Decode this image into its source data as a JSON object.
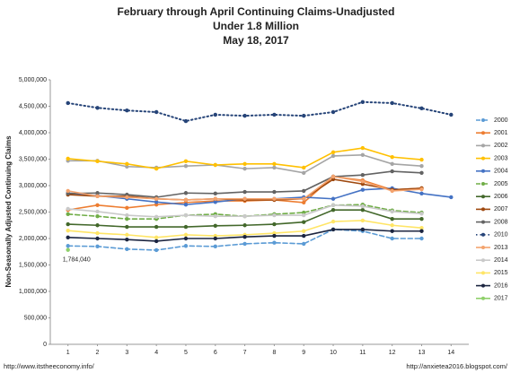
{
  "chart_data": {
    "type": "line",
    "title": "February through April Continuing Claims-Unadjusted",
    "subtitle": [
      "Under 1.8 Million",
      "May 18, 2017"
    ],
    "ylabel": "Non-Seasonally Adjusted Continuing Claims",
    "notes": [
      "http://www.itstheeconomy.info/",
      "http://anxietea2016.blogspot.com/"
    ],
    "x": [
      1,
      2,
      3,
      4,
      5,
      6,
      7,
      8,
      9,
      10,
      11,
      12,
      13,
      14
    ],
    "xlim": [
      0.4,
      14.6
    ],
    "xticks": [
      1,
      2,
      3,
      4,
      5,
      6,
      7,
      8,
      9,
      10,
      11,
      12,
      13,
      14
    ],
    "ylim": [
      0,
      5000000
    ],
    "yticks": [
      0,
      {
        "value": 500000,
        "label": "500,000"
      },
      {
        "value": 1000000,
        "label": "1,000,000"
      },
      {
        "value": 1500000,
        "label": "1,500,000"
      },
      {
        "value": 2000000,
        "label": "2,000,000"
      },
      {
        "value": 2500000,
        "label": "2,500,000"
      },
      {
        "value": 3000000,
        "label": "3,000,000"
      },
      {
        "value": 3500000,
        "label": "3,500,000"
      },
      {
        "value": 4000000,
        "label": "4,000,000"
      },
      {
        "value": 4500000,
        "label": "4,500,000"
      },
      {
        "value": 5000000,
        "label": "5,000,000"
      }
    ],
    "legend": "right",
    "series": [
      {
        "name": "2000",
        "color": "#5b9bd5",
        "style": "dashed",
        "values": [
          1860000,
          1850000,
          1800000,
          1780000,
          1860000,
          1850000,
          1900000,
          1920000,
          1900000,
          2170000,
          2140000,
          2000000,
          2000000,
          null
        ]
      },
      {
        "name": "2001",
        "color": "#ed7d31",
        "style": "solid",
        "values": [
          2540000,
          2630000,
          2580000,
          2640000,
          2680000,
          2710000,
          2710000,
          2730000,
          2680000,
          3170000,
          3100000,
          2920000,
          2950000,
          null
        ]
      },
      {
        "name": "2002",
        "color": "#a5a5a5",
        "style": "solid",
        "values": [
          3470000,
          3470000,
          3360000,
          3340000,
          3370000,
          3390000,
          3320000,
          3340000,
          3240000,
          3560000,
          3580000,
          3410000,
          3370000,
          null
        ]
      },
      {
        "name": "2003",
        "color": "#ffc000",
        "style": "solid",
        "values": [
          3510000,
          3460000,
          3410000,
          3320000,
          3460000,
          3390000,
          3410000,
          3410000,
          3340000,
          3630000,
          3710000,
          3540000,
          3490000,
          null
        ]
      },
      {
        "name": "2004",
        "color": "#4472c4",
        "style": "solid",
        "values": [
          2860000,
          2810000,
          2750000,
          2690000,
          2640000,
          2690000,
          2750000,
          2750000,
          2780000,
          2750000,
          2920000,
          2950000,
          2850000,
          2780000
        ]
      },
      {
        "name": "2005",
        "color": "#70ad47",
        "style": "dashed",
        "values": [
          2460000,
          2420000,
          2370000,
          2370000,
          2440000,
          2460000,
          2420000,
          2460000,
          2490000,
          2630000,
          2640000,
          2530000,
          2490000,
          null
        ]
      },
      {
        "name": "2006",
        "color": "#43682b",
        "style": "solid",
        "values": [
          2270000,
          2250000,
          2220000,
          2220000,
          2220000,
          2240000,
          2250000,
          2270000,
          2310000,
          2540000,
          2540000,
          2370000,
          2370000,
          null
        ]
      },
      {
        "name": "2007",
        "color": "#9e480e",
        "style": "solid",
        "values": [
          2830000,
          2800000,
          2800000,
          2750000,
          2730000,
          2750000,
          2730000,
          2730000,
          2750000,
          3120000,
          3030000,
          2920000,
          2950000,
          null
        ]
      },
      {
        "name": "2008",
        "color": "#636363",
        "style": "solid",
        "values": [
          2850000,
          2860000,
          2830000,
          2780000,
          2860000,
          2850000,
          2880000,
          2880000,
          2900000,
          3170000,
          3200000,
          3270000,
          3240000,
          null
        ]
      },
      {
        "name": "2010",
        "color": "#264478",
        "style": "dotted",
        "values": [
          4560000,
          4470000,
          4420000,
          4390000,
          4220000,
          4340000,
          4320000,
          4340000,
          4320000,
          4390000,
          4580000,
          4560000,
          4460000,
          4340000
        ]
      },
      {
        "name": "2013",
        "color": "#f4a36e",
        "style": "solid",
        "values": [
          2900000,
          2800000,
          2780000,
          2750000,
          2730000,
          2750000,
          2750000,
          2750000,
          2750000,
          3170000,
          3080000,
          2900000,
          2930000,
          null
        ]
      },
      {
        "name": "2014",
        "color": "#c9c9c9",
        "style": "solid",
        "values": [
          2560000,
          2510000,
          2440000,
          2410000,
          2440000,
          2420000,
          2420000,
          2440000,
          2440000,
          2630000,
          2610000,
          2510000,
          2470000,
          null
        ]
      },
      {
        "name": "2015",
        "color": "#ffe566",
        "style": "solid",
        "values": [
          2150000,
          2100000,
          2070000,
          2020000,
          2070000,
          2050000,
          2070000,
          2100000,
          2140000,
          2320000,
          2340000,
          2250000,
          2200000,
          null
        ]
      },
      {
        "name": "2016",
        "color": "#1c2540",
        "style": "solid",
        "values": [
          2020000,
          2000000,
          1980000,
          1950000,
          2000000,
          2000000,
          2030000,
          2050000,
          2050000,
          2170000,
          2170000,
          2140000,
          2140000,
          null
        ]
      },
      {
        "name": "2017",
        "color": "#8fd06a",
        "style": "solid",
        "values": [
          1784040,
          null,
          null,
          null,
          null,
          null,
          null,
          null,
          null,
          null,
          null,
          null,
          null,
          null
        ],
        "value_labels": [
          "1,784,040",
          null,
          null,
          null,
          null,
          null,
          null,
          null,
          null,
          null,
          null,
          null,
          null,
          null
        ]
      }
    ]
  }
}
